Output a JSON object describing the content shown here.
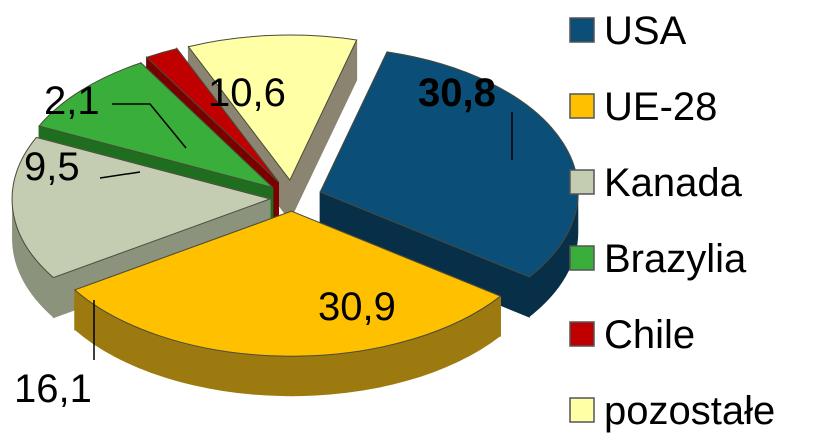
{
  "chart_data": {
    "type": "pie",
    "style": "3d-exploded",
    "title": "",
    "categories": [
      "USA",
      "UE-28",
      "Kanada",
      "Brazylia",
      "Chile",
      "pozostałe"
    ],
    "values": [
      30.8,
      30.9,
      16.1,
      9.5,
      2.1,
      10.6
    ],
    "value_labels": [
      "30,8",
      "30,9",
      "16,1",
      "9,5",
      "2,1",
      "10,6"
    ],
    "colors": [
      "#0b4f78",
      "#ffc000",
      "#c4cdb2",
      "#3aae3a",
      "#c00000",
      "#ffffa6"
    ],
    "side_colors": [
      "#082f48",
      "#9c7a10",
      "#8b937c",
      "#1f6e1f",
      "#7a0000",
      "#8b8470"
    ],
    "legend_position": "right",
    "bold_label": "USA"
  }
}
